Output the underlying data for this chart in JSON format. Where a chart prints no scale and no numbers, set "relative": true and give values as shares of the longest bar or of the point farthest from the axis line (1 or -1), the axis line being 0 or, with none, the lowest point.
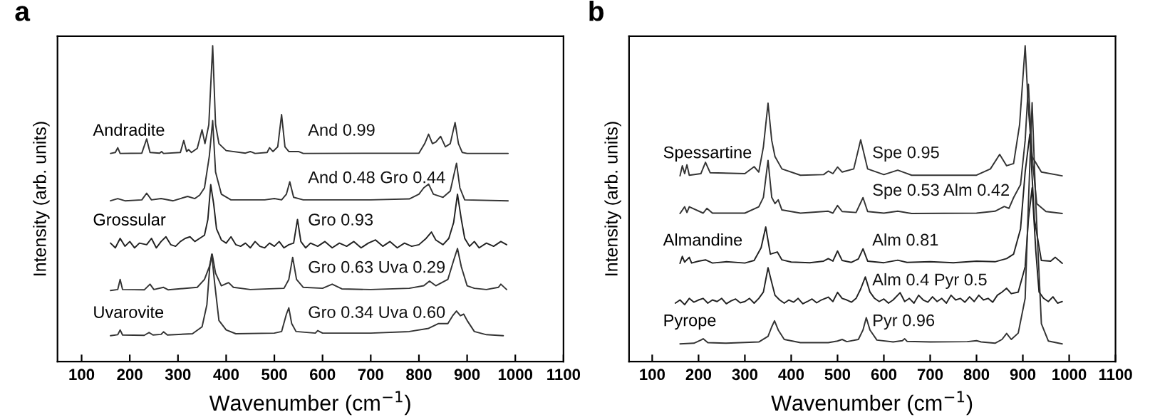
{
  "chart_data": [
    {
      "type": "line",
      "title": "a",
      "xlabel": "Wavenumber (cm$^{−1}$)",
      "ylabel": "Intensity (arb. units)",
      "relative": true,
      "xlim": [
        50,
        1100
      ],
      "xticks": [
        100,
        200,
        300,
        400,
        500,
        600,
        700,
        800,
        900,
        1000,
        1100
      ],
      "tick_labels": "x",
      "grid": false,
      "legend": false,
      "marker": "none",
      "line_style": "solid",
      "series": [
        {
          "name": "And 0.99",
          "color": "#333333",
          "x": [
            160,
            170,
            175,
            180,
            225,
            235,
            242,
            262,
            266,
            270,
            305,
            312,
            318,
            322,
            328,
            340,
            350,
            356,
            364,
            372,
            378,
            385,
            400,
            440,
            450,
            460,
            485,
            490,
            497,
            507,
            515,
            522,
            530,
            550,
            560,
            800,
            812,
            820,
            828,
            835,
            845,
            855,
            865,
            875,
            882,
            890,
            900,
            985
          ],
          "values": [
            0.659,
            0.662,
            0.677,
            0.659,
            0.66,
            0.705,
            0.662,
            0.66,
            0.665,
            0.659,
            0.662,
            0.7,
            0.665,
            0.671,
            0.662,
            0.675,
            0.734,
            0.69,
            0.75,
            1.0,
            0.75,
            0.69,
            0.668,
            0.66,
            0.665,
            0.659,
            0.662,
            0.677,
            0.665,
            0.68,
            0.782,
            0.68,
            0.665,
            0.665,
            0.659,
            0.66,
            0.69,
            0.72,
            0.69,
            0.695,
            0.713,
            0.68,
            0.69,
            0.757,
            0.69,
            0.662,
            0.659,
            0.659
          ]
        },
        {
          "name": "And 0.48 Gro 0.44",
          "color": "#333333",
          "x": [
            160,
            175,
            190,
            225,
            235,
            245,
            265,
            290,
            320,
            335,
            345,
            355,
            365,
            372,
            378,
            390,
            410,
            480,
            500,
            515,
            525,
            532,
            540,
            560,
            700,
            780,
            800,
            810,
            820,
            830,
            850,
            865,
            878,
            885,
            895,
            985
          ],
          "values": [
            0.509,
            0.516,
            0.509,
            0.512,
            0.533,
            0.512,
            0.516,
            0.509,
            0.523,
            0.516,
            0.527,
            0.55,
            0.65,
            0.763,
            0.6,
            0.53,
            0.512,
            0.512,
            0.516,
            0.512,
            0.53,
            0.569,
            0.52,
            0.512,
            0.512,
            0.515,
            0.53,
            0.55,
            0.562,
            0.53,
            0.52,
            0.54,
            0.628,
            0.55,
            0.512,
            0.509
          ]
        },
        {
          "name": "Gro 0.93",
          "color": "#222222",
          "x": [
            160,
            170,
            180,
            190,
            200,
            210,
            220,
            235,
            245,
            255,
            265,
            275,
            285,
            295,
            305,
            315,
            325,
            335,
            345,
            355,
            362,
            368,
            374,
            380,
            390,
            400,
            410,
            420,
            430,
            440,
            450,
            460,
            470,
            480,
            490,
            500,
            510,
            520,
            530,
            540,
            548,
            555,
            565,
            575,
            590,
            605,
            620,
            635,
            650,
            665,
            680,
            695,
            710,
            725,
            740,
            755,
            770,
            785,
            800,
            815,
            826,
            835,
            850,
            862,
            872,
            880,
            888,
            895,
            905,
            915,
            925,
            940,
            955,
            970,
            982
          ],
          "values": [
            0.375,
            0.36,
            0.39,
            0.365,
            0.38,
            0.36,
            0.375,
            0.37,
            0.39,
            0.36,
            0.38,
            0.395,
            0.37,
            0.365,
            0.38,
            0.39,
            0.395,
            0.38,
            0.39,
            0.4,
            0.45,
            0.56,
            0.5,
            0.42,
            0.385,
            0.375,
            0.395,
            0.37,
            0.365,
            0.375,
            0.36,
            0.38,
            0.365,
            0.36,
            0.375,
            0.365,
            0.38,
            0.36,
            0.37,
            0.375,
            0.45,
            0.38,
            0.36,
            0.375,
            0.365,
            0.38,
            0.36,
            0.375,
            0.365,
            0.38,
            0.36,
            0.375,
            0.385,
            0.365,
            0.38,
            0.36,
            0.375,
            0.365,
            0.37,
            0.39,
            0.41,
            0.385,
            0.37,
            0.39,
            0.44,
            0.53,
            0.45,
            0.39,
            0.365,
            0.38,
            0.36,
            0.375,
            0.365,
            0.38,
            0.37
          ]
        },
        {
          "name": "Gro 0.63 Uva 0.29",
          "color": "#333333",
          "x": [
            160,
            175,
            180,
            185,
            230,
            242,
            250,
            270,
            280,
            340,
            355,
            365,
            371,
            378,
            390,
            405,
            415,
            450,
            520,
            530,
            538,
            546,
            560,
            600,
            620,
            640,
            700,
            780,
            810,
            822,
            835,
            860,
            872,
            880,
            888,
            900,
            915,
            940,
            965,
            970,
            982
          ],
          "values": [
            0.225,
            0.228,
            0.26,
            0.228,
            0.227,
            0.245,
            0.228,
            0.235,
            0.227,
            0.235,
            0.26,
            0.3,
            0.34,
            0.28,
            0.24,
            0.25,
            0.235,
            0.228,
            0.232,
            0.26,
            0.33,
            0.26,
            0.235,
            0.232,
            0.245,
            0.23,
            0.228,
            0.232,
            0.24,
            0.255,
            0.24,
            0.26,
            0.32,
            0.358,
            0.3,
            0.24,
            0.232,
            0.228,
            0.235,
            0.245,
            0.228
          ]
        },
        {
          "name": "Gro 0.34 Uva 0.60",
          "color": "#333333",
          "x": [
            160,
            175,
            180,
            185,
            230,
            240,
            248,
            265,
            270,
            278,
            330,
            350,
            360,
            366,
            370,
            376,
            385,
            400,
            420,
            500,
            515,
            525,
            530,
            536,
            545,
            585,
            590,
            600,
            700,
            780,
            820,
            840,
            860,
            870,
            878,
            886,
            893,
            900,
            915,
            940,
            975
          ],
          "values": [
            0.082,
            0.085,
            0.1,
            0.084,
            0.083,
            0.092,
            0.084,
            0.086,
            0.094,
            0.084,
            0.088,
            0.11,
            0.18,
            0.3,
            0.34,
            0.25,
            0.13,
            0.1,
            0.088,
            0.09,
            0.095,
            0.15,
            0.17,
            0.12,
            0.095,
            0.09,
            0.098,
            0.09,
            0.09,
            0.095,
            0.105,
            0.12,
            0.12,
            0.145,
            0.16,
            0.145,
            0.15,
            0.13,
            0.095,
            0.085,
            0.082
          ]
        }
      ],
      "annotations": [
        "Andradite",
        "Grossular",
        "Uvarovite"
      ]
    },
    {
      "type": "line",
      "title": "b",
      "xlabel": "Wavenumber (cm$^{−1}$)",
      "ylabel": "Intensity (arb. units)",
      "relative": true,
      "xlim": [
        50,
        1100
      ],
      "xticks": [
        100,
        200,
        300,
        400,
        500,
        600,
        700,
        800,
        900,
        1000,
        1100
      ],
      "tick_labels": "x",
      "grid": false,
      "legend": false,
      "marker": "none",
      "line_style": "solid",
      "series": [
        {
          "name": "Spe 0.95",
          "color": "#333333",
          "x": [
            160,
            165,
            170,
            175,
            180,
            205,
            215,
            225,
            300,
            320,
            330,
            340,
            350,
            358,
            365,
            380,
            420,
            470,
            480,
            490,
            500,
            510,
            535,
            550,
            565,
            600,
            630,
            660,
            800,
            830,
            850,
            865,
            880,
            893,
            905,
            912,
            920,
            940,
            985
          ],
          "values": [
            0.588,
            0.62,
            0.595,
            0.623,
            0.59,
            0.595,
            0.631,
            0.598,
            0.595,
            0.617,
            0.6,
            0.68,
            0.818,
            0.7,
            0.649,
            0.61,
            0.59,
            0.592,
            0.603,
            0.595,
            0.616,
            0.6,
            0.61,
            0.702,
            0.61,
            0.592,
            0.606,
            0.59,
            0.59,
            0.61,
            0.656,
            0.62,
            0.627,
            0.75,
            1.0,
            0.8,
            0.649,
            0.6,
            0.588
          ]
        },
        {
          "name": "Spe 0.53 Alm 0.42",
          "color": "#333333",
          "x": [
            160,
            170,
            175,
            180,
            210,
            218,
            230,
            300,
            330,
            340,
            350,
            358,
            365,
            372,
            380,
            420,
            480,
            490,
            500,
            510,
            540,
            555,
            565,
            600,
            630,
            660,
            800,
            840,
            860,
            870,
            880,
            895,
            905,
            912,
            920,
            930,
            950,
            985
          ],
          "values": [
            0.469,
            0.49,
            0.472,
            0.49,
            0.47,
            0.485,
            0.47,
            0.47,
            0.49,
            0.52,
            0.637,
            0.52,
            0.5,
            0.512,
            0.48,
            0.47,
            0.476,
            0.47,
            0.494,
            0.475,
            0.472,
            0.519,
            0.475,
            0.47,
            0.476,
            0.469,
            0.47,
            0.476,
            0.491,
            0.485,
            0.519,
            0.56,
            0.7,
            0.878,
            0.65,
            0.5,
            0.475,
            0.469
          ]
        },
        {
          "name": "Alm 0.81",
          "color": "#222222",
          "x": [
            160,
            165,
            170,
            180,
            185,
            200,
            215,
            230,
            260,
            300,
            320,
            335,
            345,
            355,
            370,
            380,
            400,
            440,
            470,
            480,
            490,
            500,
            510,
            530,
            545,
            555,
            565,
            600,
            630,
            650,
            700,
            750,
            800,
            840,
            865,
            880,
            895,
            905,
            915,
            925,
            940,
            960,
            970,
            985
          ],
          "values": [
            0.311,
            0.333,
            0.315,
            0.33,
            0.312,
            0.318,
            0.322,
            0.312,
            0.316,
            0.312,
            0.32,
            0.36,
            0.426,
            0.34,
            0.347,
            0.322,
            0.315,
            0.313,
            0.318,
            0.326,
            0.318,
            0.35,
            0.32,
            0.314,
            0.325,
            0.357,
            0.318,
            0.313,
            0.321,
            0.314,
            0.316,
            0.313,
            0.318,
            0.316,
            0.326,
            0.34,
            0.42,
            0.6,
            0.72,
            0.45,
            0.32,
            0.318,
            0.33,
            0.311
          ]
        },
        {
          "name": "Alm 0.4 Pyr 0.5",
          "color": "#222222",
          "x": [
            150,
            160,
            170,
            180,
            190,
            200,
            210,
            220,
            230,
            240,
            250,
            260,
            270,
            280,
            290,
            300,
            310,
            320,
            330,
            340,
            350,
            358,
            365,
            375,
            385,
            395,
            405,
            415,
            425,
            435,
            445,
            455,
            465,
            480,
            490,
            500,
            510,
            520,
            530,
            540,
            550,
            560,
            570,
            580,
            590,
            600,
            610,
            620,
            635,
            645,
            655,
            665,
            675,
            685,
            695,
            705,
            715,
            725,
            735,
            745,
            755,
            765,
            775,
            785,
            795,
            805,
            815,
            825,
            835,
            845,
            855,
            865,
            875,
            890,
            905,
            912,
            920,
            928,
            935,
            945,
            955,
            965,
            975,
            985
          ],
          "values": [
            0.185,
            0.195,
            0.18,
            0.2,
            0.188,
            0.195,
            0.2,
            0.185,
            0.195,
            0.19,
            0.2,
            0.183,
            0.192,
            0.198,
            0.186,
            0.19,
            0.2,
            0.185,
            0.2,
            0.22,
            0.297,
            0.25,
            0.21,
            0.195,
            0.185,
            0.195,
            0.188,
            0.2,
            0.183,
            0.19,
            0.198,
            0.186,
            0.195,
            0.204,
            0.19,
            0.219,
            0.2,
            0.195,
            0.188,
            0.2,
            0.23,
            0.268,
            0.22,
            0.2,
            0.19,
            0.198,
            0.185,
            0.195,
            0.218,
            0.19,
            0.2,
            0.185,
            0.21,
            0.195,
            0.188,
            0.205,
            0.19,
            0.2,
            0.185,
            0.21,
            0.195,
            0.2,
            0.188,
            0.205,
            0.19,
            0.21,
            0.195,
            0.2,
            0.188,
            0.21,
            0.22,
            0.232,
            0.215,
            0.22,
            0.3,
            0.45,
            0.55,
            0.35,
            0.22,
            0.2,
            0.19,
            0.205,
            0.185,
            0.19
          ]
        },
        {
          "name": "Pyr 0.96",
          "color": "#333333",
          "x": [
            160,
            190,
            205,
            210,
            220,
            260,
            330,
            350,
            358,
            364,
            372,
            385,
            420,
            480,
            500,
            510,
            520,
            545,
            555,
            562,
            570,
            585,
            620,
            640,
            645,
            650,
            700,
            780,
            800,
            810,
            840,
            855,
            865,
            875,
            890,
            905,
            912,
            920,
            928,
            940,
            955,
            985
          ],
          "values": [
            0.056,
            0.058,
            0.068,
            0.072,
            0.06,
            0.058,
            0.062,
            0.08,
            0.11,
            0.129,
            0.1,
            0.07,
            0.06,
            0.06,
            0.065,
            0.07,
            0.063,
            0.07,
            0.1,
            0.139,
            0.1,
            0.068,
            0.062,
            0.066,
            0.072,
            0.064,
            0.062,
            0.063,
            0.066,
            0.062,
            0.058,
            0.07,
            0.089,
            0.07,
            0.09,
            0.2,
            0.5,
            0.82,
            0.5,
            0.12,
            0.065,
            0.056
          ]
        }
      ],
      "annotations": [
        "Spessartine",
        "Almandine",
        "Pyrope"
      ]
    }
  ]
}
